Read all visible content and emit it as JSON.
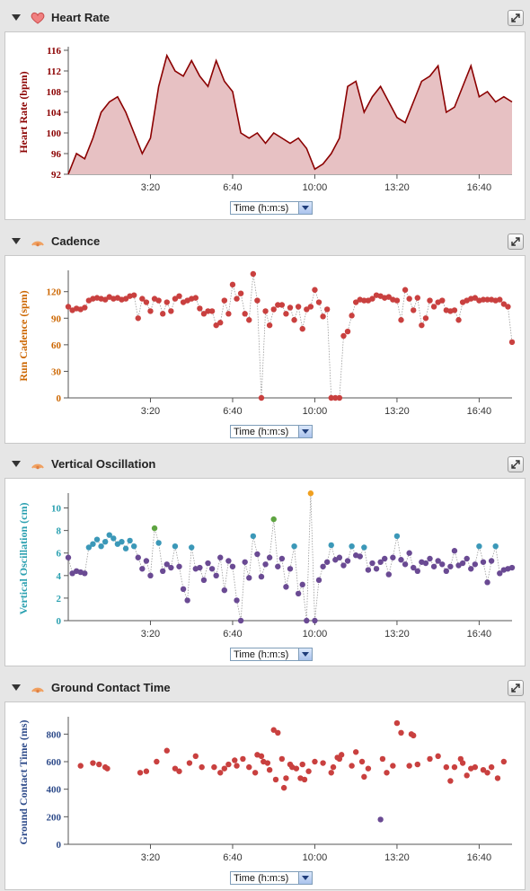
{
  "time_ticks": [
    "3:20",
    "6:40",
    "10:00",
    "13:20",
    "16:40"
  ],
  "colors": {
    "hr": "#8b0000",
    "cad": "#cc6600",
    "vo": "#2aa0b0",
    "gct": "#2e4b8a",
    "red_point": "#c9403f",
    "purple_point": "#6a4a93",
    "blue_point": "#3b98b8",
    "green_point": "#5ea441",
    "orange_point": "#f0a020"
  },
  "panels": [
    {
      "title": "Heart Rate",
      "icon": "heart-icon",
      "ylabel": "Heart Rate (bpm)",
      "select": "Time (h:m:s)"
    },
    {
      "title": "Cadence",
      "icon": "running-icon",
      "ylabel": "Run Cadence (spm)",
      "select": "Time (h:m:s)"
    },
    {
      "title": "Vertical Oscillation",
      "icon": "running-icon",
      "ylabel": "Vertical Oscillation (cm)",
      "select": "Time (h:m:s)"
    },
    {
      "title": "Ground Contact Time",
      "icon": "running-icon",
      "ylabel": "Ground Contact Time (ms)",
      "select": "Time (h:m:s)"
    }
  ],
  "chart_data": [
    {
      "type": "area",
      "ylabel": "Heart Rate (bpm)",
      "xlabel": "Time (h:m:s)",
      "ylim": [
        92,
        116
      ],
      "yticks": [
        92,
        96,
        100,
        104,
        108,
        112,
        116
      ],
      "xlim_s": [
        0,
        1080
      ],
      "x": [
        0,
        20,
        40,
        60,
        80,
        100,
        120,
        140,
        160,
        180,
        200,
        220,
        240,
        260,
        280,
        300,
        320,
        340,
        360,
        380,
        400,
        420,
        440,
        460,
        480,
        500,
        520,
        540,
        560,
        580,
        600,
        620,
        640,
        660,
        680,
        700,
        720,
        740,
        760,
        780,
        800,
        820,
        840,
        860,
        880,
        900,
        920,
        940,
        960,
        980,
        1000,
        1020,
        1040,
        1060,
        1080
      ],
      "y": [
        92,
        96,
        95,
        99,
        104,
        106,
        107,
        104,
        100,
        96,
        99,
        109,
        115,
        112,
        111,
        114,
        111,
        109,
        114,
        110,
        108,
        100,
        99,
        100,
        98,
        100,
        99,
        98,
        99,
        97,
        93,
        94,
        96,
        99,
        109,
        110,
        104,
        107,
        109,
        106,
        103,
        102,
        106,
        110,
        111,
        113,
        104,
        105,
        109,
        113,
        107,
        108,
        106,
        107,
        106
      ]
    },
    {
      "type": "scatter",
      "ylabel": "Run Cadence (spm)",
      "xlabel": "Time (h:m:s)",
      "ylim": [
        0,
        140
      ],
      "yticks": [
        0,
        30,
        60,
        90,
        120
      ],
      "xlim_s": [
        0,
        1080
      ],
      "x": [
        0,
        10,
        20,
        30,
        40,
        50,
        60,
        70,
        80,
        90,
        100,
        110,
        120,
        130,
        140,
        150,
        160,
        170,
        180,
        190,
        200,
        210,
        220,
        230,
        240,
        250,
        260,
        270,
        280,
        290,
        300,
        310,
        320,
        330,
        340,
        350,
        360,
        370,
        380,
        390,
        400,
        410,
        420,
        430,
        440,
        450,
        460,
        470,
        480,
        490,
        500,
        510,
        520,
        530,
        540,
        550,
        560,
        570,
        580,
        590,
        600,
        610,
        620,
        630,
        640,
        650,
        660,
        670,
        680,
        690,
        700,
        710,
        720,
        730,
        740,
        750,
        760,
        770,
        780,
        790,
        800,
        810,
        820,
        830,
        840,
        850,
        860,
        870,
        880,
        890,
        900,
        910,
        920,
        930,
        940,
        950,
        960,
        970,
        980,
        990,
        1000,
        1010,
        1020,
        1030,
        1040,
        1050,
        1060,
        1070,
        1080
      ],
      "y": [
        103,
        99,
        101,
        100,
        102,
        110,
        112,
        113,
        112,
        111,
        114,
        112,
        113,
        111,
        112,
        115,
        116,
        90,
        112,
        108,
        98,
        112,
        110,
        95,
        108,
        98,
        112,
        115,
        108,
        110,
        112,
        113,
        101,
        95,
        98,
        98,
        82,
        85,
        110,
        95,
        128,
        112,
        118,
        95,
        88,
        140,
        110,
        0,
        98,
        82,
        100,
        105,
        105,
        95,
        102,
        88,
        103,
        78,
        100,
        103,
        122,
        108,
        92,
        100,
        0,
        0,
        0,
        70,
        75,
        93,
        108,
        111,
        110,
        110,
        112,
        116,
        115,
        113,
        114,
        111,
        110,
        88,
        122,
        112,
        99,
        113,
        82,
        90,
        110,
        103,
        108,
        110,
        99,
        98,
        99,
        88,
        108,
        110,
        112,
        113,
        110,
        111,
        111,
        111,
        110,
        111,
        106,
        103,
        63
      ],
      "note_zero_points_x": [
        470,
        640,
        650,
        660
      ]
    },
    {
      "type": "scatter",
      "ylabel": "Vertical Oscillation (cm)",
      "xlabel": "Time (h:m:s)",
      "ylim": [
        0,
        11
      ],
      "yticks": [
        0,
        2,
        4,
        6,
        8,
        10
      ],
      "xlim_s": [
        0,
        1080
      ],
      "x": [
        0,
        10,
        20,
        30,
        40,
        50,
        60,
        70,
        80,
        90,
        100,
        110,
        120,
        130,
        140,
        150,
        160,
        170,
        180,
        190,
        200,
        210,
        220,
        230,
        240,
        250,
        260,
        270,
        280,
        290,
        300,
        310,
        320,
        330,
        340,
        350,
        360,
        370,
        380,
        390,
        400,
        410,
        420,
        430,
        440,
        450,
        460,
        470,
        480,
        490,
        500,
        510,
        520,
        530,
        540,
        550,
        560,
        570,
        580,
        590,
        600,
        610,
        620,
        630,
        640,
        650,
        660,
        670,
        680,
        690,
        700,
        710,
        720,
        730,
        740,
        750,
        760,
        770,
        780,
        790,
        800,
        810,
        820,
        830,
        840,
        850,
        860,
        870,
        880,
        890,
        900,
        910,
        920,
        930,
        940,
        950,
        960,
        970,
        980,
        990,
        1000,
        1010,
        1020,
        1030,
        1040,
        1050,
        1060,
        1070,
        1080
      ],
      "y": [
        5.6,
        4.2,
        4.4,
        4.3,
        4.2,
        6.5,
        6.8,
        7.2,
        6.6,
        7.0,
        7.6,
        7.3,
        6.8,
        7.0,
        6.4,
        7.1,
        6.6,
        5.6,
        4.6,
        5.3,
        4.0,
        8.2,
        6.9,
        4.4,
        5.0,
        4.7,
        6.6,
        4.8,
        2.8,
        1.8,
        6.5,
        4.6,
        4.7,
        3.6,
        5.1,
        4.6,
        4.0,
        5.6,
        2.7,
        5.3,
        4.8,
        1.8,
        0.0,
        5.2,
        3.8,
        7.5,
        5.9,
        3.9,
        5.0,
        5.6,
        9.0,
        4.8,
        5.5,
        3.0,
        4.6,
        6.6,
        2.4,
        3.2,
        0.0,
        11.3,
        0.0,
        3.6,
        4.8,
        5.2,
        6.7,
        5.4,
        5.6,
        4.9,
        5.3,
        6.6,
        5.8,
        5.7,
        6.5,
        4.5,
        5.1,
        4.6,
        5.2,
        5.5,
        4.1,
        5.6,
        7.5,
        5.4,
        5.0,
        6.0,
        4.7,
        4.4,
        5.2,
        5.1,
        5.5,
        4.8,
        5.3,
        5.0,
        4.4,
        4.8,
        6.2,
        4.9,
        5.1,
        5.5,
        4.6,
        5.0,
        6.6,
        5.2,
        3.4,
        5.3,
        6.6,
        4.2,
        4.5,
        4.6,
        4.7
      ]
    },
    {
      "type": "scatter",
      "ylabel": "Ground Contact Time (ms)",
      "xlabel": "Time (h:m:s)",
      "ylim": [
        0,
        900
      ],
      "yticks": [
        0,
        200,
        400,
        600,
        800
      ],
      "xlim_s": [
        0,
        1080
      ],
      "x": [
        30,
        60,
        75,
        90,
        95,
        175,
        190,
        215,
        240,
        260,
        270,
        295,
        310,
        325,
        355,
        370,
        380,
        390,
        405,
        410,
        425,
        440,
        455,
        460,
        470,
        475,
        485,
        490,
        500,
        505,
        510,
        520,
        525,
        530,
        540,
        545,
        555,
        565,
        570,
        575,
        585,
        600,
        620,
        640,
        645,
        655,
        660,
        665,
        690,
        700,
        715,
        720,
        730,
        760,
        765,
        775,
        790,
        800,
        810,
        830,
        835,
        840,
        850,
        880,
        900,
        920,
        930,
        940,
        955,
        960,
        970,
        980,
        990,
        1010,
        1020,
        1030,
        1045,
        1060
      ],
      "y": [
        570,
        590,
        580,
        560,
        550,
        520,
        530,
        600,
        680,
        550,
        530,
        590,
        640,
        560,
        560,
        520,
        550,
        580,
        610,
        570,
        620,
        560,
        520,
        650,
        640,
        600,
        590,
        540,
        830,
        470,
        810,
        620,
        410,
        480,
        580,
        560,
        550,
        480,
        580,
        470,
        530,
        600,
        590,
        520,
        560,
        630,
        620,
        650,
        570,
        670,
        600,
        490,
        550,
        180,
        620,
        520,
        570,
        880,
        810,
        570,
        800,
        790,
        580,
        620,
        640,
        560,
        460,
        560,
        620,
        590,
        500,
        550,
        560,
        540,
        520,
        560,
        480,
        600
      ]
    }
  ]
}
